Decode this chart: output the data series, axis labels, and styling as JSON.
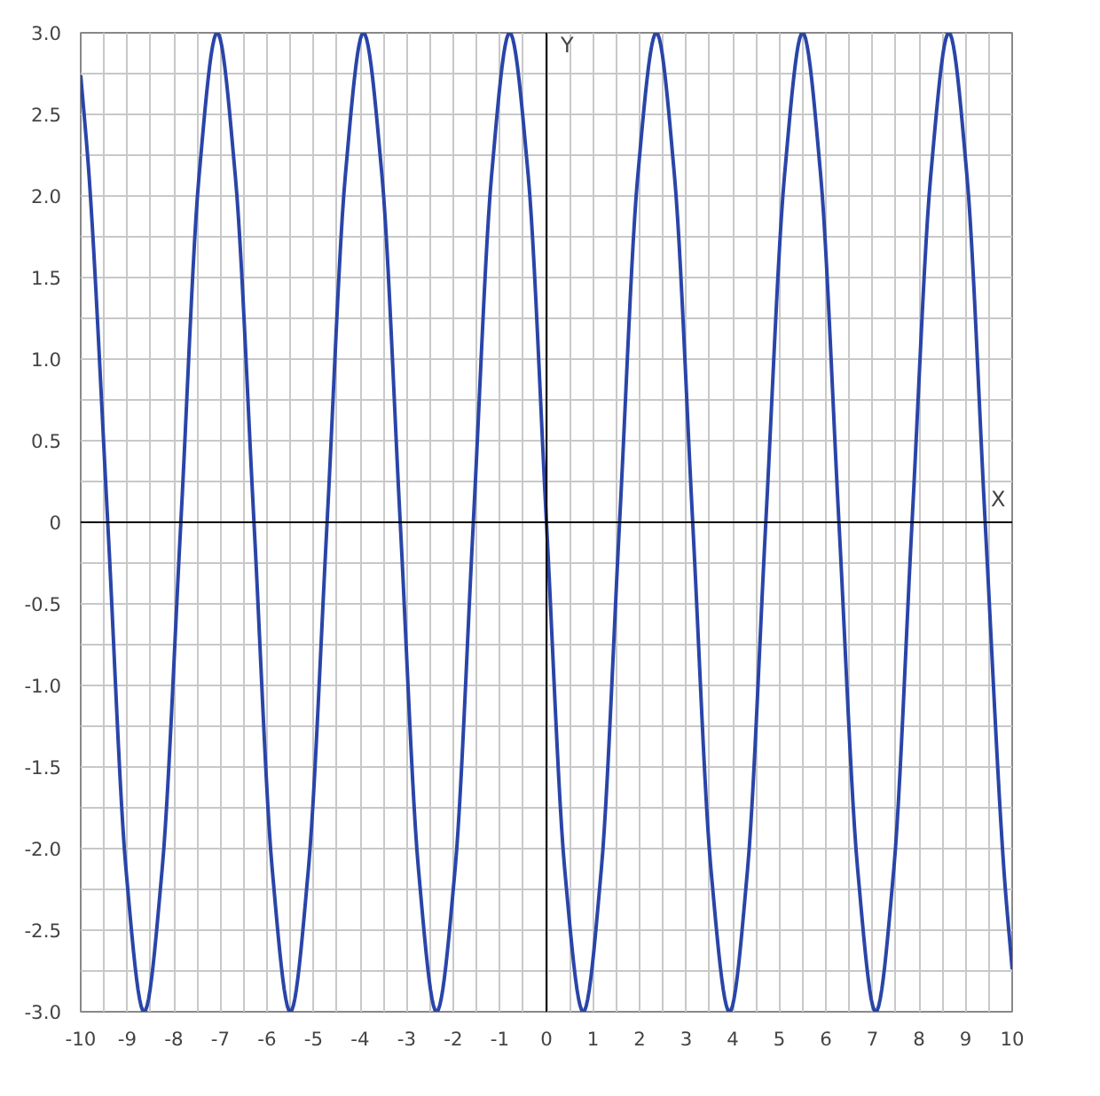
{
  "chart_data": {
    "type": "line",
    "xlabel": "X",
    "ylabel": "Y",
    "x": [
      -10,
      -9.82,
      -9.42,
      -9.03,
      -8.64,
      -8.25,
      -7.85,
      -7.46,
      -7.07,
      -6.68,
      -6.28,
      -5.89,
      -5.5,
      -5.11,
      -4.71,
      -4.32,
      -3.93,
      -3.53,
      -3.14,
      -2.75,
      -2.36,
      -1.96,
      -1.57,
      -1.18,
      -0.79,
      -0.39,
      0,
      0.39,
      0.79,
      1.18,
      1.57,
      1.96,
      2.36,
      2.75,
      3.14,
      3.53,
      3.93,
      4.32,
      4.71,
      5.11,
      5.5,
      5.89,
      6.28,
      6.68,
      7.07,
      7.46,
      7.85,
      8.25,
      8.64,
      9.03,
      9.42,
      9.82,
      10
    ],
    "series": [
      {
        "color": "#2a45a8",
        "values": [
          2.74,
          2.12,
          0,
          -2.12,
          -3,
          -2.12,
          0,
          2.12,
          3,
          2.12,
          0,
          -2.12,
          -3,
          -2.12,
          0,
          2.12,
          3,
          2.12,
          0,
          -2.12,
          -3,
          -2.12,
          0,
          2.12,
          3,
          2.12,
          0,
          -2.12,
          -3,
          -2.12,
          0,
          2.12,
          3,
          2.12,
          0,
          -2.12,
          -3,
          -2.12,
          0,
          2.12,
          3,
          2.12,
          0,
          -2.12,
          -3,
          -2.12,
          0,
          2.12,
          3,
          2.12,
          0,
          -2.12,
          -2.74
        ]
      }
    ],
    "xlim": [
      -10,
      10
    ],
    "ylim": [
      -3,
      3
    ],
    "xticks": [
      -10,
      -9,
      -8,
      -7,
      -6,
      -5,
      -4,
      -3,
      -2,
      -1,
      0,
      1,
      2,
      3,
      4,
      5,
      6,
      7,
      8,
      9,
      10
    ],
    "yticks": [
      {
        "value": -3,
        "label": "-3.0"
      },
      {
        "value": -2.5,
        "label": "-2.5"
      },
      {
        "value": -2,
        "label": "-2.0"
      },
      {
        "value": -1.5,
        "label": "-1.5"
      },
      {
        "value": -1,
        "label": "-1.0"
      },
      {
        "value": -0.5,
        "label": "-0.5"
      },
      0,
      {
        "value": 0.5,
        "label": "0.5"
      },
      {
        "value": 1,
        "label": "1.0"
      },
      {
        "value": 1.5,
        "label": "1.5"
      },
      {
        "value": 2,
        "label": "2.0"
      },
      {
        "value": 2.5,
        "label": "2.5"
      },
      {
        "value": 3,
        "label": "3.0"
      }
    ],
    "grid": true,
    "marker": "none",
    "line_style": "solid"
  }
}
